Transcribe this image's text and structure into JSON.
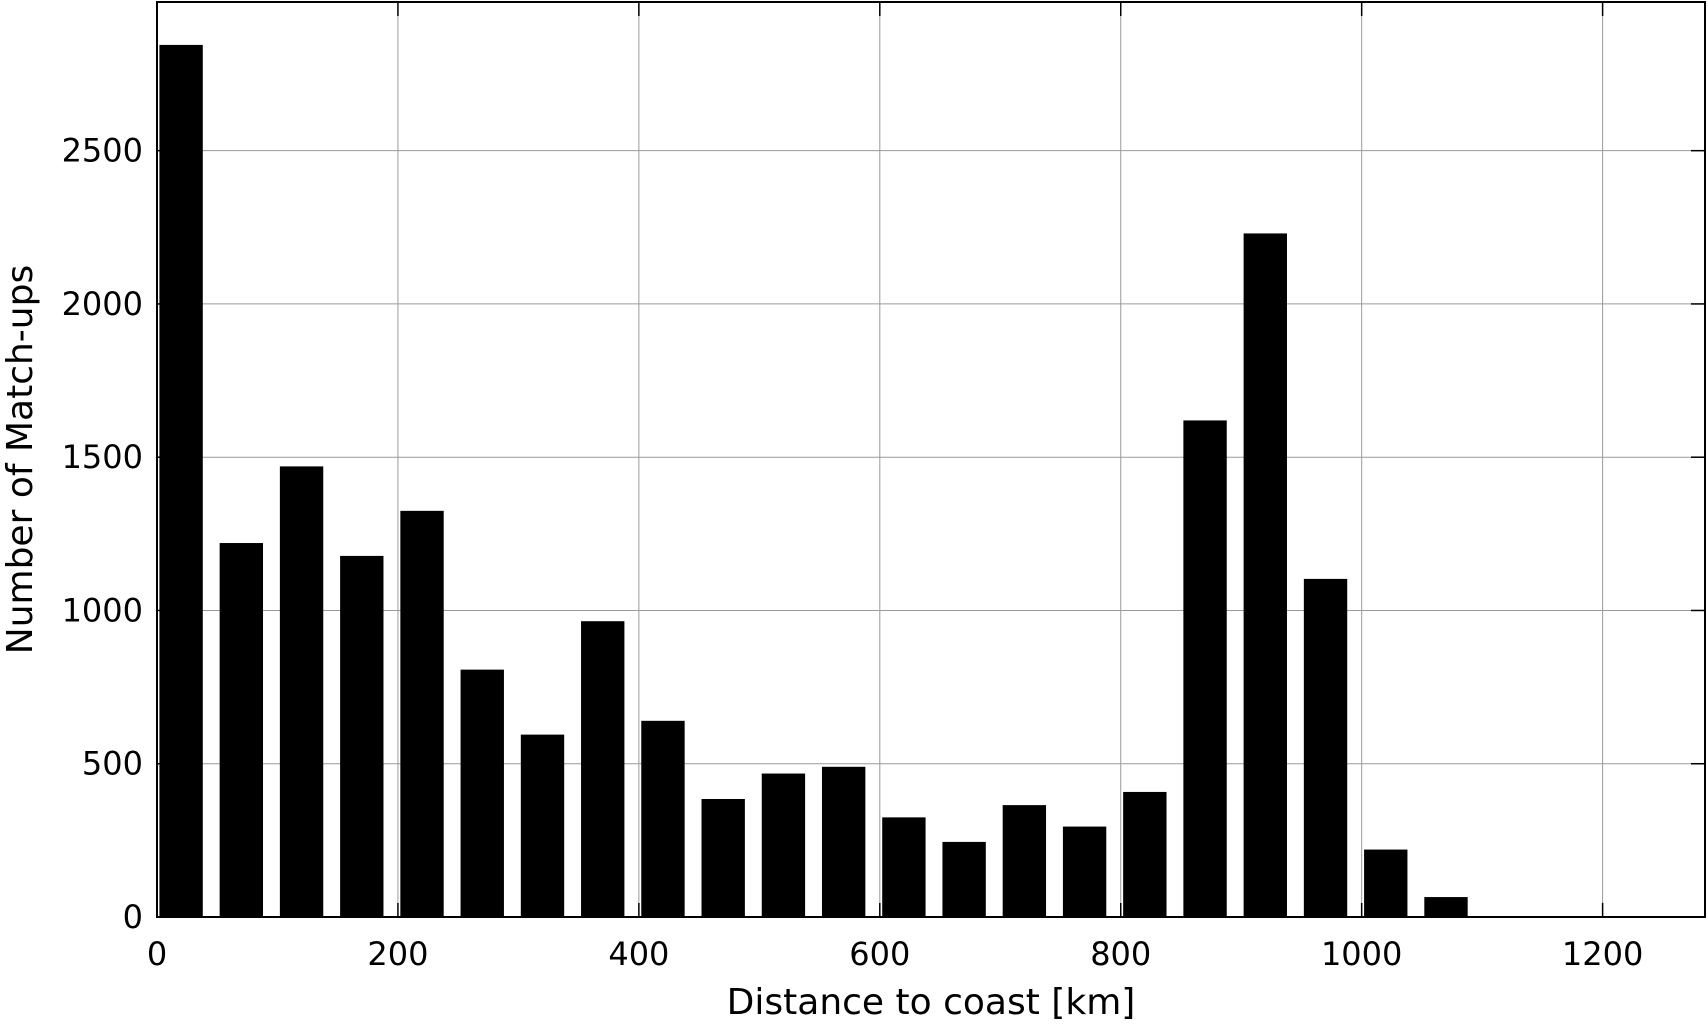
{
  "chart_data": {
    "type": "bar",
    "title": "",
    "xlabel": "Distance to coast [km]",
    "ylabel": "Number of Match-ups",
    "bar_width_km": 36,
    "x": [
      20,
      70,
      120,
      170,
      220,
      270,
      320,
      370,
      420,
      470,
      520,
      570,
      620,
      670,
      720,
      770,
      820,
      870,
      920,
      970,
      1020,
      1070
    ],
    "values": [
      2845,
      1220,
      1470,
      1178,
      1325,
      807,
      595,
      965,
      640,
      385,
      468,
      490,
      325,
      245,
      365,
      295,
      408,
      1620,
      2230,
      1103,
      220,
      65
    ],
    "xlim": [
      0,
      1285
    ],
    "ylim": [
      0,
      2985
    ],
    "xticks": [
      0,
      200,
      400,
      600,
      800,
      1000,
      1200
    ],
    "yticks": [
      0,
      500,
      1000,
      1500,
      2000,
      2500
    ],
    "xtick_labels": [
      "0",
      "200",
      "400",
      "600",
      "800",
      "1000",
      "1200"
    ],
    "ytick_labels": [
      "0",
      "500",
      "1000",
      "1500",
      "2000",
      "2500"
    ],
    "grid": true,
    "bar_color": "#000000",
    "grid_color": "#9a9a9a"
  }
}
